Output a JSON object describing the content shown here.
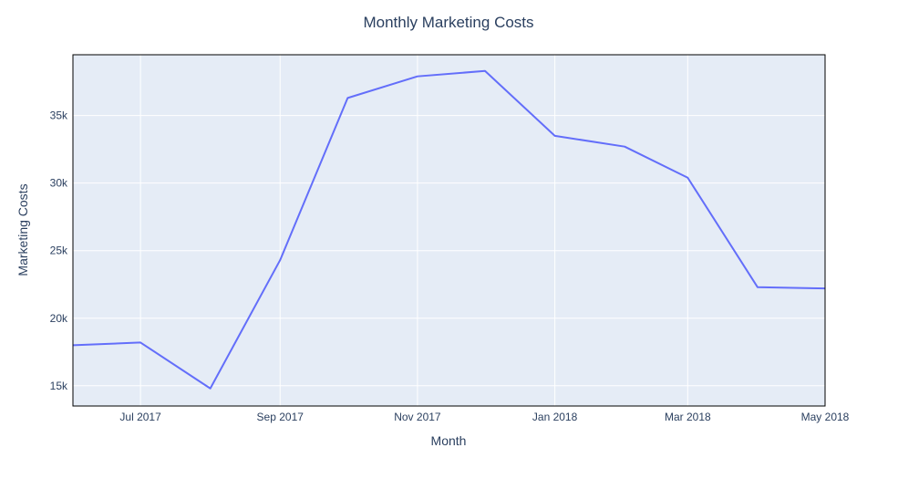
{
  "chart_data": {
    "type": "line",
    "title": "Monthly Marketing Costs",
    "xlabel": "Month",
    "ylabel": "Marketing Costs",
    "x": [
      "2017-06-01",
      "2017-07-01",
      "2017-08-01",
      "2017-09-01",
      "2017-10-01",
      "2017-11-01",
      "2017-12-01",
      "2018-01-01",
      "2018-02-01",
      "2018-03-01",
      "2018-04-01",
      "2018-05-01"
    ],
    "series": [
      {
        "values": [
          18000,
          18200,
          14800,
          24300,
          36300,
          37900,
          38300,
          33500,
          32700,
          30400,
          22300,
          22200
        ]
      }
    ],
    "xlim": [
      "2017-06-01",
      "2018-05-01"
    ],
    "ylim": [
      13500,
      39500
    ],
    "x_ticks": [
      {
        "date": "2017-07-01",
        "label": "Jul 2017"
      },
      {
        "date": "2017-09-01",
        "label": "Sep 2017"
      },
      {
        "date": "2017-11-01",
        "label": "Nov 2017"
      },
      {
        "date": "2018-01-01",
        "label": "Jan 2018"
      },
      {
        "date": "2018-03-01",
        "label": "Mar 2018"
      },
      {
        "date": "2018-05-01",
        "label": "May 2018"
      }
    ],
    "y_ticks": [
      {
        "value": 15000,
        "label": "15k"
      },
      {
        "value": 20000,
        "label": "20k"
      },
      {
        "value": 25000,
        "label": "25k"
      },
      {
        "value": 30000,
        "label": "30k"
      },
      {
        "value": 35000,
        "label": "35k"
      }
    ],
    "grid": true,
    "colors": {
      "line": "#636efa",
      "plot_bg": "#e5ecf6",
      "grid": "#ffffff",
      "text": "#2a3f5f"
    }
  }
}
